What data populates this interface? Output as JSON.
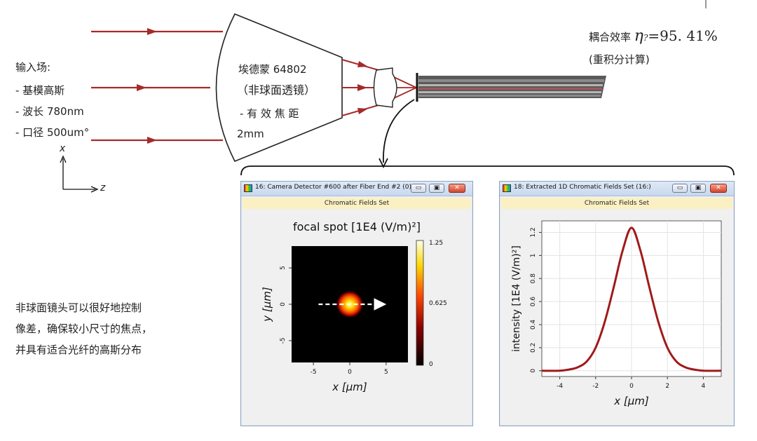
{
  "diagram": {
    "efficiency_label": "耦合效率",
    "efficiency_symbol": "η",
    "efficiency_subscript": "?",
    "efficiency_value": "=95. 41%",
    "efficiency_method": "(重积分计算)",
    "input_title": "输入场:",
    "input_items": [
      "- 基模高斯",
      "- 波长 780nm",
      "- 口径 500um°"
    ],
    "lens_lines": [
      "埃德蒙 64802",
      "（非球面透镜）",
      "-  有 效 焦 距",
      "2mm"
    ],
    "axis_x": "x",
    "axis_z": "z",
    "note_lines": [
      "非球面镜头可以很好地控制",
      "像差，确保较小尺寸的焦点，",
      "并具有适合光纤的高斯分布"
    ],
    "beam_color": "#a52a2a"
  },
  "window_left": {
    "title": "16: Camera Detector #600 after Fiber End #2 (0)...",
    "subtitle": "Chromatic Fields Set",
    "buttons": [
      "▭",
      "▣",
      "✕"
    ]
  },
  "window_right": {
    "title": "18: Extracted 1D Chromatic Fields Set (16:)",
    "subtitle": "Chromatic Fields Set",
    "buttons": [
      "▭",
      "▣",
      "✕"
    ]
  },
  "chart_data": [
    {
      "type": "heatmap",
      "title": "focal spot [1E4 (V/m)²]",
      "xlabel": "x [µm]",
      "ylabel": "y [µm]",
      "xlim": [
        -8,
        8
      ],
      "ylim": [
        -8,
        8
      ],
      "xticks": [
        -5,
        0,
        5
      ],
      "yticks": [
        -5,
        0,
        5
      ],
      "colorbar": {
        "min": 0,
        "mid": 0.625,
        "max": 1.25,
        "labels": [
          "1.25",
          "0.625",
          "0"
        ]
      },
      "peak": {
        "x": 0,
        "y": 0,
        "value": 1.25
      }
    },
    {
      "type": "line",
      "xlabel": "x [µm]",
      "ylabel": "intensity [1E4 (V/m)²]",
      "xlim": [
        -5,
        5
      ],
      "ylim": [
        -0.05,
        1.3
      ],
      "xticks": [
        -4,
        -2,
        0,
        2,
        4
      ],
      "yticks": [
        0,
        0.2,
        0.4,
        0.6,
        0.8,
        1,
        1.2
      ],
      "grid": true,
      "series": [
        {
          "color": "#a01a1a",
          "x": [
            -5,
            -4,
            -3.5,
            -3,
            -2.5,
            -2,
            -1.5,
            -1,
            -0.5,
            0,
            0.5,
            1,
            1.5,
            2,
            2.5,
            3,
            3.5,
            4,
            5
          ],
          "y": [
            0,
            0.0,
            0.01,
            0.03,
            0.08,
            0.2,
            0.42,
            0.72,
            1.04,
            1.24,
            1.04,
            0.72,
            0.42,
            0.2,
            0.08,
            0.03,
            0.01,
            0.0,
            0
          ]
        }
      ]
    }
  ]
}
